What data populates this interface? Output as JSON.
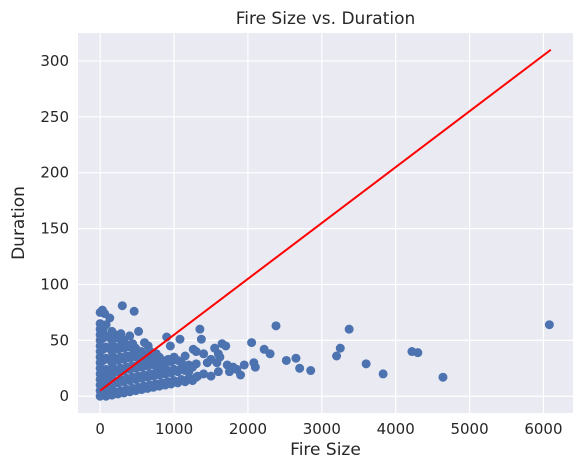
{
  "chart_data": {
    "type": "scatter",
    "title": "Fire Size vs. Duration",
    "xlabel": "Fire Size",
    "ylabel": "Duration",
    "xlim": [
      -300,
      6400
    ],
    "ylim": [
      -15,
      325
    ],
    "xticks": [
      0,
      1000,
      2000,
      3000,
      4000,
      5000,
      6000
    ],
    "yticks": [
      0,
      50,
      100,
      150,
      200,
      250,
      300
    ],
    "grid": true,
    "colors": {
      "background": "#eaeaf2",
      "grid": "#ffffff",
      "points": "#4c72b0",
      "trend": "#ff0000"
    },
    "trend_line": {
      "x": [
        0,
        6100
      ],
      "y": [
        5,
        310
      ]
    },
    "series": [
      {
        "points": [
          [
            0,
            75
          ],
          [
            30,
            77
          ],
          [
            60,
            74
          ],
          [
            130,
            70
          ],
          [
            300,
            81
          ],
          [
            460,
            76
          ],
          [
            520,
            58
          ],
          [
            560,
            40
          ],
          [
            600,
            48
          ],
          [
            650,
            45
          ],
          [
            700,
            30
          ],
          [
            760,
            38
          ],
          [
            820,
            26
          ],
          [
            870,
            28
          ],
          [
            900,
            53
          ],
          [
            950,
            45
          ],
          [
            1000,
            35
          ],
          [
            1080,
            51
          ],
          [
            1100,
            30
          ],
          [
            1150,
            36
          ],
          [
            1200,
            22
          ],
          [
            1260,
            42
          ],
          [
            1300,
            40
          ],
          [
            1320,
            18
          ],
          [
            1350,
            60
          ],
          [
            1370,
            51
          ],
          [
            1400,
            38
          ],
          [
            1450,
            30
          ],
          [
            1500,
            33
          ],
          [
            1550,
            43
          ],
          [
            1580,
            30
          ],
          [
            1600,
            38
          ],
          [
            1620,
            35
          ],
          [
            1650,
            47
          ],
          [
            1700,
            45
          ],
          [
            1720,
            28
          ],
          [
            1750,
            22
          ],
          [
            1800,
            26
          ],
          [
            1850,
            24
          ],
          [
            1900,
            19
          ],
          [
            1950,
            28
          ],
          [
            2050,
            48
          ],
          [
            2080,
            30
          ],
          [
            2100,
            26
          ],
          [
            2220,
            42
          ],
          [
            2300,
            38
          ],
          [
            2380,
            63
          ],
          [
            2520,
            32
          ],
          [
            2650,
            34
          ],
          [
            2700,
            25
          ],
          [
            2850,
            23
          ],
          [
            3200,
            36
          ],
          [
            3250,
            43
          ],
          [
            3370,
            60
          ],
          [
            3600,
            29
          ],
          [
            3830,
            20
          ],
          [
            4220,
            40
          ],
          [
            4300,
            39
          ],
          [
            4640,
            17
          ],
          [
            6080,
            64
          ],
          [
            0,
            0
          ],
          [
            0,
            5
          ],
          [
            0,
            10
          ],
          [
            0,
            15
          ],
          [
            0,
            20
          ],
          [
            0,
            25
          ],
          [
            0,
            30
          ],
          [
            0,
            35
          ],
          [
            0,
            40
          ],
          [
            0,
            45
          ],
          [
            0,
            50
          ],
          [
            0,
            55
          ],
          [
            0,
            60
          ],
          [
            0,
            65
          ],
          [
            40,
            2
          ],
          [
            40,
            12
          ],
          [
            40,
            22
          ],
          [
            40,
            32
          ],
          [
            40,
            42
          ],
          [
            40,
            52
          ],
          [
            40,
            60
          ],
          [
            80,
            0
          ],
          [
            80,
            8
          ],
          [
            80,
            16
          ],
          [
            80,
            24
          ],
          [
            80,
            34
          ],
          [
            80,
            44
          ],
          [
            80,
            54
          ],
          [
            80,
            64
          ],
          [
            120,
            3
          ],
          [
            120,
            13
          ],
          [
            120,
            23
          ],
          [
            120,
            33
          ],
          [
            120,
            43
          ],
          [
            120,
            53
          ],
          [
            160,
            1
          ],
          [
            160,
            10
          ],
          [
            160,
            20
          ],
          [
            160,
            30
          ],
          [
            160,
            40
          ],
          [
            160,
            50
          ],
          [
            160,
            58
          ],
          [
            200,
            4
          ],
          [
            200,
            14
          ],
          [
            200,
            24
          ],
          [
            200,
            34
          ],
          [
            200,
            44
          ],
          [
            200,
            55
          ],
          [
            240,
            2
          ],
          [
            240,
            12
          ],
          [
            240,
            22
          ],
          [
            240,
            32
          ],
          [
            240,
            42
          ],
          [
            240,
            52
          ],
          [
            280,
            5
          ],
          [
            280,
            15
          ],
          [
            280,
            25
          ],
          [
            280,
            35
          ],
          [
            280,
            45
          ],
          [
            280,
            56
          ],
          [
            320,
            3
          ],
          [
            320,
            13
          ],
          [
            320,
            23
          ],
          [
            320,
            33
          ],
          [
            320,
            43
          ],
          [
            320,
            50
          ],
          [
            360,
            6
          ],
          [
            360,
            16
          ],
          [
            360,
            26
          ],
          [
            360,
            36
          ],
          [
            360,
            46
          ],
          [
            400,
            4
          ],
          [
            400,
            14
          ],
          [
            400,
            24
          ],
          [
            400,
            34
          ],
          [
            400,
            44
          ],
          [
            400,
            54
          ],
          [
            440,
            7
          ],
          [
            440,
            17
          ],
          [
            440,
            27
          ],
          [
            440,
            37
          ],
          [
            440,
            47
          ],
          [
            480,
            5
          ],
          [
            480,
            15
          ],
          [
            480,
            25
          ],
          [
            480,
            35
          ],
          [
            480,
            43
          ],
          [
            520,
            8
          ],
          [
            520,
            18
          ],
          [
            520,
            28
          ],
          [
            520,
            38
          ],
          [
            560,
            6
          ],
          [
            560,
            16
          ],
          [
            560,
            26
          ],
          [
            560,
            33
          ],
          [
            600,
            9
          ],
          [
            600,
            19
          ],
          [
            600,
            29
          ],
          [
            600,
            37
          ],
          [
            640,
            7
          ],
          [
            640,
            17
          ],
          [
            640,
            27
          ],
          [
            640,
            35
          ],
          [
            680,
            10
          ],
          [
            680,
            20
          ],
          [
            680,
            30
          ],
          [
            680,
            40
          ],
          [
            720,
            8
          ],
          [
            720,
            18
          ],
          [
            720,
            28
          ],
          [
            720,
            36
          ],
          [
            760,
            11
          ],
          [
            760,
            21
          ],
          [
            760,
            31
          ],
          [
            800,
            9
          ],
          [
            800,
            19
          ],
          [
            800,
            29
          ],
          [
            800,
            35
          ],
          [
            840,
            12
          ],
          [
            840,
            22
          ],
          [
            840,
            32
          ],
          [
            880,
            10
          ],
          [
            880,
            20
          ],
          [
            880,
            30
          ],
          [
            920,
            13
          ],
          [
            920,
            23
          ],
          [
            920,
            33
          ],
          [
            960,
            11
          ],
          [
            960,
            21
          ],
          [
            960,
            31
          ],
          [
            1000,
            14
          ],
          [
            1000,
            24
          ],
          [
            1050,
            12
          ],
          [
            1050,
            22
          ],
          [
            1050,
            32
          ],
          [
            1100,
            15
          ],
          [
            1100,
            25
          ],
          [
            1150,
            13
          ],
          [
            1150,
            23
          ],
          [
            1200,
            16
          ],
          [
            1200,
            28
          ],
          [
            1250,
            14
          ],
          [
            1250,
            26
          ],
          [
            1300,
            17
          ],
          [
            1300,
            29
          ],
          [
            1400,
            20
          ],
          [
            1500,
            18
          ],
          [
            1600,
            22
          ]
        ]
      }
    ]
  }
}
